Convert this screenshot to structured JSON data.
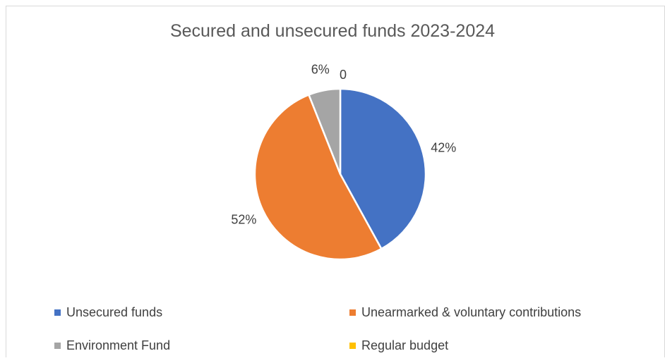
{
  "chart_data": {
    "type": "pie",
    "title": "Secured and unsecured funds 2023-2024",
    "categories": [
      "Unsecured funds",
      "Unearmarked & voluntary contributions",
      "Environment Fund",
      "Regular budget"
    ],
    "values": [
      42,
      52,
      6,
      0
    ],
    "labels": [
      "42%",
      "52%",
      "6%",
      "0"
    ],
    "colors": [
      "#4472c4",
      "#ed7d31",
      "#a5a5a5",
      "#ffc000"
    ],
    "legend": "bottom"
  }
}
